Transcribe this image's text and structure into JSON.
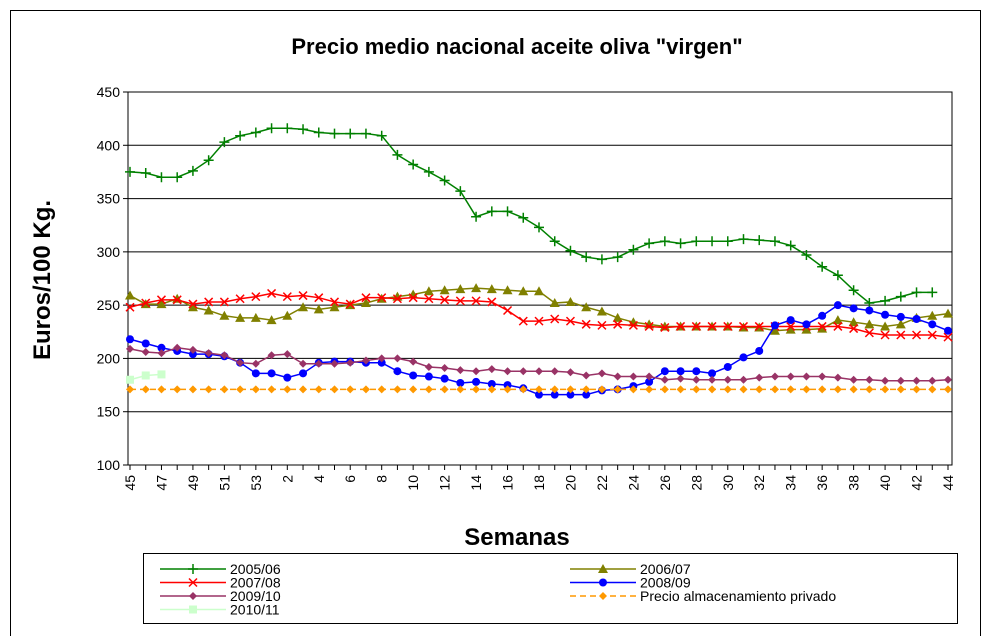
{
  "chart_data": {
    "type": "line",
    "title": "Precio medio nacional aceite oliva \"virgen\"",
    "xlabel": "Semanas",
    "ylabel": "Euros/100 Kg.",
    "categories": [
      "45",
      null,
      "47",
      null,
      "49",
      null,
      "51",
      null,
      "53",
      null,
      "2",
      null,
      "4",
      null,
      "6",
      null,
      "8",
      null,
      "10",
      null,
      "12",
      null,
      "14",
      null,
      "16",
      null,
      "18",
      null,
      "20",
      null,
      "22",
      null,
      "24",
      null,
      "26",
      null,
      "28",
      null,
      "30",
      null,
      "32",
      null,
      "34",
      null,
      "36",
      null,
      "38",
      null,
      "40",
      null,
      "42",
      null,
      "44"
    ],
    "ylim": [
      100,
      450
    ],
    "yticks": [
      100,
      150,
      200,
      250,
      300,
      350,
      400,
      450
    ],
    "grid": true,
    "legend": "bottom",
    "series": [
      {
        "name": "2005/06",
        "color": "#008000",
        "marker": "plus",
        "values": [
          375,
          374,
          370,
          370,
          376,
          386,
          403,
          409,
          412,
          416,
          416,
          415,
          412,
          411,
          411,
          411,
          409,
          391,
          382,
          375,
          367,
          357,
          333,
          338,
          338,
          332,
          323,
          310,
          301,
          295,
          293,
          295,
          302,
          308,
          310,
          308,
          310,
          310,
          310,
          312,
          311,
          310,
          306,
          297,
          286,
          278,
          264,
          252,
          254,
          258,
          262,
          262,
          null
        ]
      },
      {
        "name": "2006/07",
        "color": "#808000",
        "marker": "triangle",
        "values": [
          259,
          251,
          251,
          256,
          248,
          245,
          240,
          238,
          238,
          236,
          240,
          248,
          246,
          248,
          250,
          252,
          256,
          258,
          260,
          263,
          264,
          265,
          266,
          265,
          264,
          263,
          263,
          252,
          253,
          248,
          244,
          238,
          234,
          232,
          230,
          230,
          230,
          230,
          230,
          229,
          229,
          226,
          227,
          227,
          228,
          236,
          234,
          232,
          230,
          232,
          238,
          240,
          242
        ]
      },
      {
        "name": "2007/08",
        "color": "#ff0000",
        "marker": "cross",
        "values": [
          248,
          252,
          255,
          255,
          251,
          253,
          253,
          256,
          258,
          261,
          258,
          259,
          257,
          253,
          251,
          257,
          257,
          256,
          257,
          256,
          255,
          254,
          254,
          253,
          245,
          235,
          235,
          237,
          235,
          232,
          231,
          232,
          231,
          230,
          229,
          230,
          230,
          230,
          230,
          230,
          230,
          230,
          230,
          230,
          230,
          230,
          228,
          224,
          222,
          222,
          222,
          222,
          220
        ]
      },
      {
        "name": "2008/09",
        "color": "#0000ff",
        "marker": "circle",
        "values": [
          218,
          214,
          210,
          207,
          204,
          204,
          202,
          196,
          186,
          186,
          182,
          186,
          196,
          197,
          197,
          196,
          196,
          188,
          184,
          183,
          181,
          177,
          178,
          176,
          175,
          172,
          166,
          166,
          166,
          166,
          170,
          171,
          174,
          178,
          188,
          188,
          188,
          186,
          192,
          201,
          207,
          231,
          236,
          232,
          240,
          250,
          247,
          245,
          241,
          239,
          237,
          232,
          226
        ]
      },
      {
        "name": "2009/10",
        "color": "#993366",
        "marker": "diamond",
        "values": [
          209,
          206,
          205,
          210,
          208,
          205,
          203,
          196,
          195,
          203,
          204,
          195,
          195,
          195,
          196,
          198,
          200,
          200,
          197,
          192,
          191,
          189,
          188,
          190,
          188,
          188,
          188,
          188,
          187,
          184,
          186,
          183,
          183,
          183,
          180,
          181,
          180,
          180,
          180,
          180,
          182,
          183,
          183,
          183,
          183,
          182,
          180,
          180,
          179,
          179,
          179,
          179,
          180
        ]
      },
      {
        "name": "Precio almacenamiento privado",
        "color": "#ff9900",
        "marker": "diamond",
        "dash": "dashed",
        "values": [
          171,
          171,
          171,
          171,
          171,
          171,
          171,
          171,
          171,
          171,
          171,
          171,
          171,
          171,
          171,
          171,
          171,
          171,
          171,
          171,
          171,
          171,
          171,
          171,
          171,
          171,
          171,
          171,
          171,
          171,
          171,
          171,
          171,
          171,
          171,
          171,
          171,
          171,
          171,
          171,
          171,
          171,
          171,
          171,
          171,
          171,
          171,
          171,
          171,
          171,
          171,
          171,
          171
        ]
      },
      {
        "name": "2010/11",
        "color": "#ccffcc",
        "marker": "square",
        "values": [
          180,
          184,
          185,
          null,
          null,
          null,
          null,
          null,
          null,
          null,
          null,
          null,
          null,
          null,
          null,
          null,
          null,
          null,
          null,
          null,
          null,
          null,
          null,
          null,
          null,
          null,
          null,
          null,
          null,
          null,
          null,
          null,
          null,
          null,
          null,
          null,
          null,
          null,
          null,
          null,
          null,
          null,
          null,
          null,
          null,
          null,
          null,
          null,
          null,
          null,
          null,
          null,
          null
        ]
      }
    ]
  }
}
